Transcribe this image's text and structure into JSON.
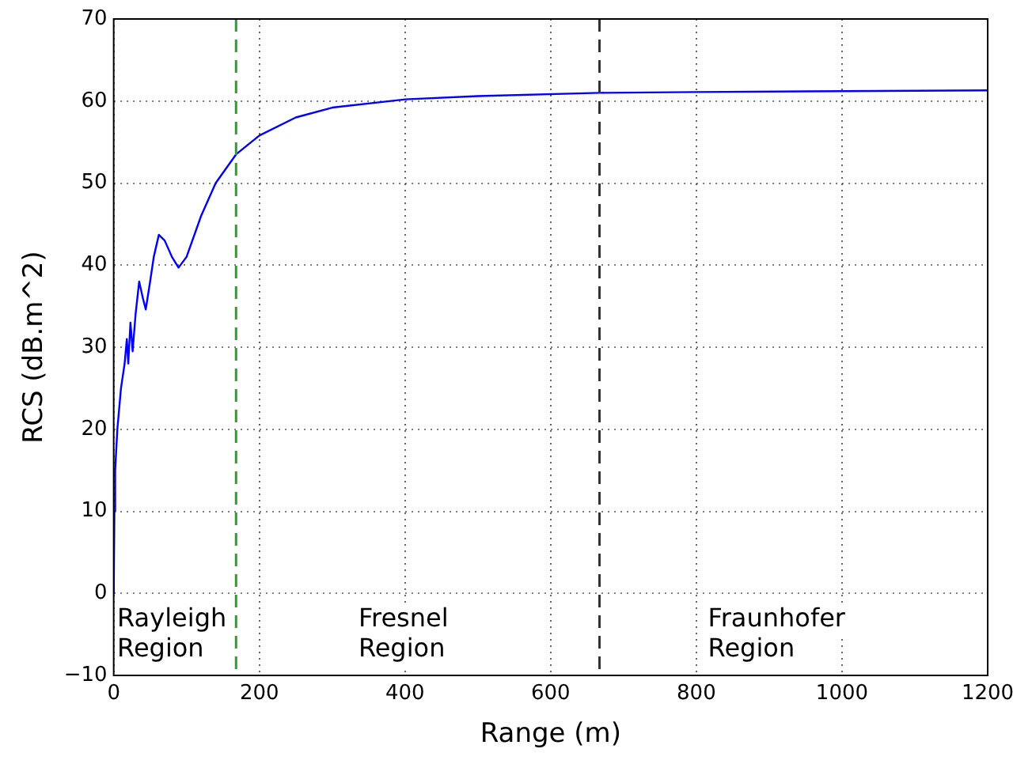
{
  "chart_data": {
    "type": "line",
    "xlabel": "Range (m)",
    "ylabel": "RCS (dB.m^2)",
    "x": [
      0,
      1,
      2,
      5,
      10,
      15,
      18,
      20,
      23,
      26,
      30,
      35,
      40,
      44,
      50,
      55,
      62,
      70,
      80,
      89,
      100,
      120,
      140,
      168,
      200,
      250,
      300,
      400,
      500,
      667,
      800,
      1000,
      1200
    ],
    "series": [
      {
        "color": "#0000ff",
        "values": [
          0,
          10,
          15,
          20,
          25,
          28,
          31,
          28,
          33,
          29.5,
          34,
          38,
          36,
          34.6,
          38,
          41,
          43.7,
          43,
          41,
          39.7,
          41,
          46,
          50,
          53.5,
          55.8,
          58,
          59.2,
          60.2,
          60.6,
          61,
          61.1,
          61.2,
          61.3
        ]
      }
    ],
    "xlim": [
      0,
      1200
    ],
    "xticks": [
      0,
      200,
      400,
      600,
      800,
      1000,
      1200
    ],
    "ylim": [
      -10,
      70
    ],
    "yticks": [
      -10,
      0,
      10,
      20,
      30,
      40,
      50,
      60,
      70
    ],
    "grid": true,
    "legend": false,
    "marker": "none",
    "line_style": "solid",
    "ref_lines": [
      {
        "axis": "x",
        "value": 168,
        "color": "#2ca02c",
        "line_style": "dashed"
      },
      {
        "axis": "x",
        "value": 667,
        "color": "#333333",
        "line_style": "dashed"
      }
    ],
    "annotations": [
      "Rayleigh\nRegion",
      "Fresnel\nRegion",
      "Fraunhofer\nRegion"
    ]
  }
}
